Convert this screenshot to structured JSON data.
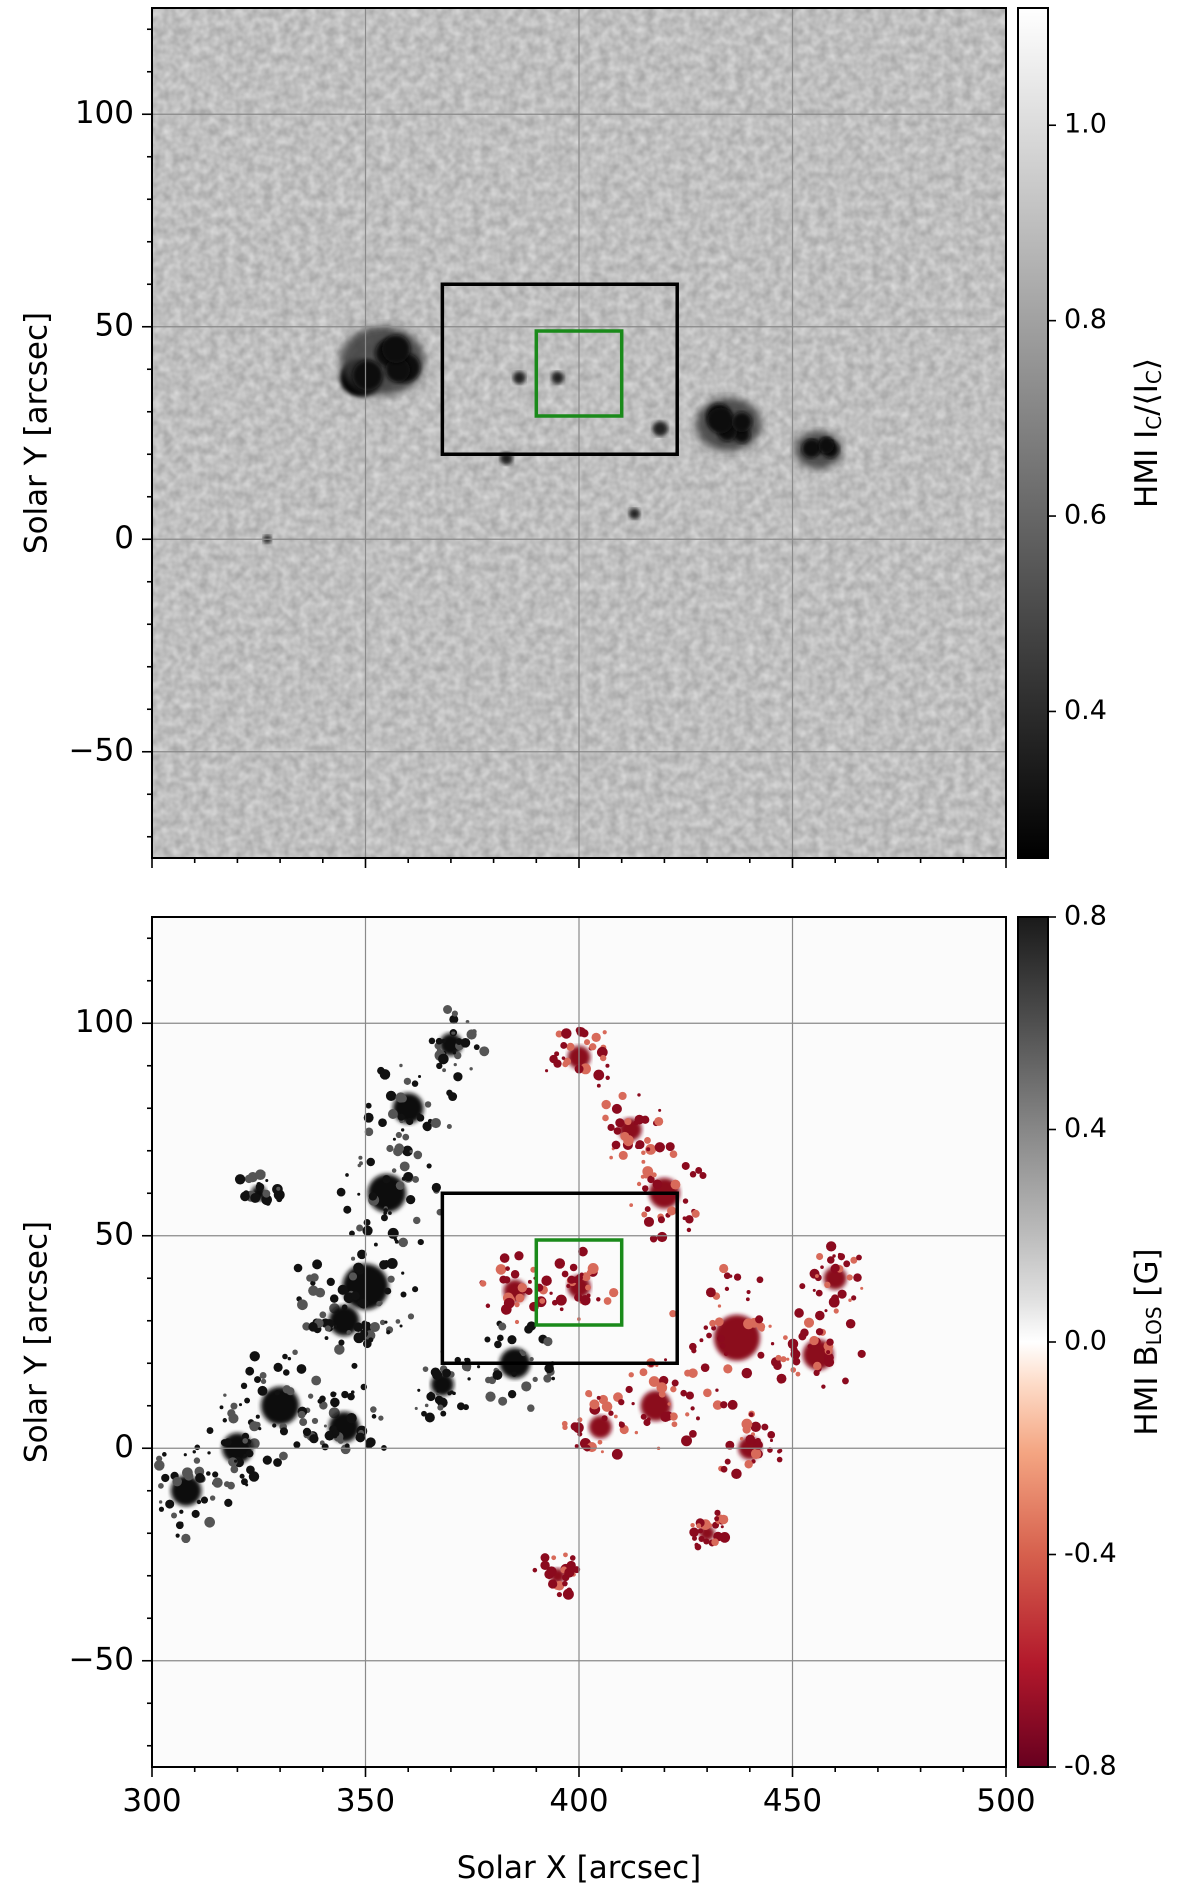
{
  "chart_data": [
    {
      "type": "heatmap",
      "panel": "top",
      "xlabel": "",
      "ylabel": "Solar Y [arcsec]",
      "xlim": [
        300,
        500
      ],
      "ylim": [
        -75,
        125
      ],
      "xticks": [
        300,
        350,
        400,
        450,
        500
      ],
      "yticks": [
        100,
        50,
        0,
        -50
      ],
      "ytick_labels": [
        "100",
        "50",
        "0",
        "−50"
      ],
      "grid": true,
      "colorbar": {
        "label_main": "HMI I",
        "label_sub1": "C",
        "label_mid": "/⟨I",
        "label_sub2": "C",
        "label_end": "⟩",
        "range": [
          0.25,
          1.12
        ],
        "ticks": [
          1.0,
          0.8,
          0.6,
          0.4
        ],
        "tick_labels": [
          "1.0",
          "0.8",
          "0.6",
          "0.4"
        ],
        "colormap": "gray"
      },
      "boxes": [
        {
          "name": "context",
          "x": [
            368,
            423
          ],
          "y": [
            20,
            60
          ],
          "color": "#000000"
        },
        {
          "name": "zoom",
          "x": [
            390,
            410
          ],
          "y": [
            29,
            49
          ],
          "color": "#1a8a1a"
        }
      ],
      "features": [
        {
          "x": 349,
          "y": 38,
          "r": 5,
          "kind": "umbra"
        },
        {
          "x": 354,
          "y": 42,
          "r": 9,
          "kind": "penumbra"
        },
        {
          "x": 435,
          "y": 27,
          "r": 7,
          "kind": "penumbra"
        },
        {
          "x": 456,
          "y": 21,
          "r": 5,
          "kind": "penumbra"
        },
        {
          "x": 386,
          "y": 38,
          "r": 1.5,
          "kind": "pore"
        },
        {
          "x": 395,
          "y": 38,
          "r": 1.5,
          "kind": "pore"
        },
        {
          "x": 419,
          "y": 26,
          "r": 1.8,
          "kind": "pore"
        },
        {
          "x": 383,
          "y": 19,
          "r": 1.5,
          "kind": "pore"
        },
        {
          "x": 413,
          "y": 6,
          "r": 1.3,
          "kind": "pore"
        },
        {
          "x": 327,
          "y": 0,
          "r": 1,
          "kind": "pore"
        }
      ]
    },
    {
      "type": "heatmap",
      "panel": "bottom",
      "xlabel": "Solar X [arcsec]",
      "ylabel": "Solar Y [arcsec]",
      "xlim": [
        300,
        500
      ],
      "ylim": [
        -75,
        125
      ],
      "xticks": [
        300,
        350,
        400,
        450,
        500
      ],
      "xtick_labels": [
        "300",
        "350",
        "400",
        "450",
        "500"
      ],
      "yticks": [
        100,
        50,
        0,
        -50
      ],
      "ytick_labels": [
        "100",
        "50",
        "0",
        "−50"
      ],
      "grid": true,
      "colorbar": {
        "label_main": "HMI B",
        "label_sub": "LOS",
        "label_end": " [G]",
        "range": [
          -0.8,
          0.8
        ],
        "ticks": [
          0.8,
          0.4,
          0.0,
          -0.4,
          -0.8
        ],
        "tick_labels": [
          "0.8",
          "0.4",
          "0.0",
          "-0.4",
          "-0.8"
        ],
        "colormap": "RdGy_r (red negative, black positive)"
      },
      "boxes": [
        {
          "name": "context",
          "x": [
            368,
            423
          ],
          "y": [
            20,
            60
          ],
          "color": "#000000"
        },
        {
          "name": "zoom",
          "x": [
            390,
            410
          ],
          "y": [
            29,
            49
          ],
          "color": "#1a8a1a"
        }
      ],
      "positive_regions": [
        {
          "x": 350,
          "y": 38,
          "r": 6
        },
        {
          "x": 355,
          "y": 60,
          "r": 5
        },
        {
          "x": 345,
          "y": 30,
          "r": 4
        },
        {
          "x": 330,
          "y": 10,
          "r": 5
        },
        {
          "x": 320,
          "y": 0,
          "r": 4
        },
        {
          "x": 308,
          "y": -10,
          "r": 4
        },
        {
          "x": 345,
          "y": 5,
          "r": 4
        },
        {
          "x": 360,
          "y": 80,
          "r": 4
        },
        {
          "x": 370,
          "y": 95,
          "r": 3
        },
        {
          "x": 385,
          "y": 20,
          "r": 4
        },
        {
          "x": 368,
          "y": 15,
          "r": 3
        },
        {
          "x": 325,
          "y": 60,
          "r": 2
        }
      ],
      "negative_regions": [
        {
          "x": 437,
          "y": 26,
          "r": 6
        },
        {
          "x": 456,
          "y": 22,
          "r": 4
        },
        {
          "x": 400,
          "y": 38,
          "r": 3
        },
        {
          "x": 385,
          "y": 37,
          "r": 3
        },
        {
          "x": 418,
          "y": 10,
          "r": 4
        },
        {
          "x": 405,
          "y": 5,
          "r": 3
        },
        {
          "x": 420,
          "y": 60,
          "r": 4
        },
        {
          "x": 412,
          "y": 75,
          "r": 3
        },
        {
          "x": 400,
          "y": 92,
          "r": 3
        },
        {
          "x": 460,
          "y": 40,
          "r": 3
        },
        {
          "x": 440,
          "y": 0,
          "r": 3
        },
        {
          "x": 395,
          "y": -30,
          "r": 2
        },
        {
          "x": 430,
          "y": -20,
          "r": 2
        }
      ]
    }
  ]
}
